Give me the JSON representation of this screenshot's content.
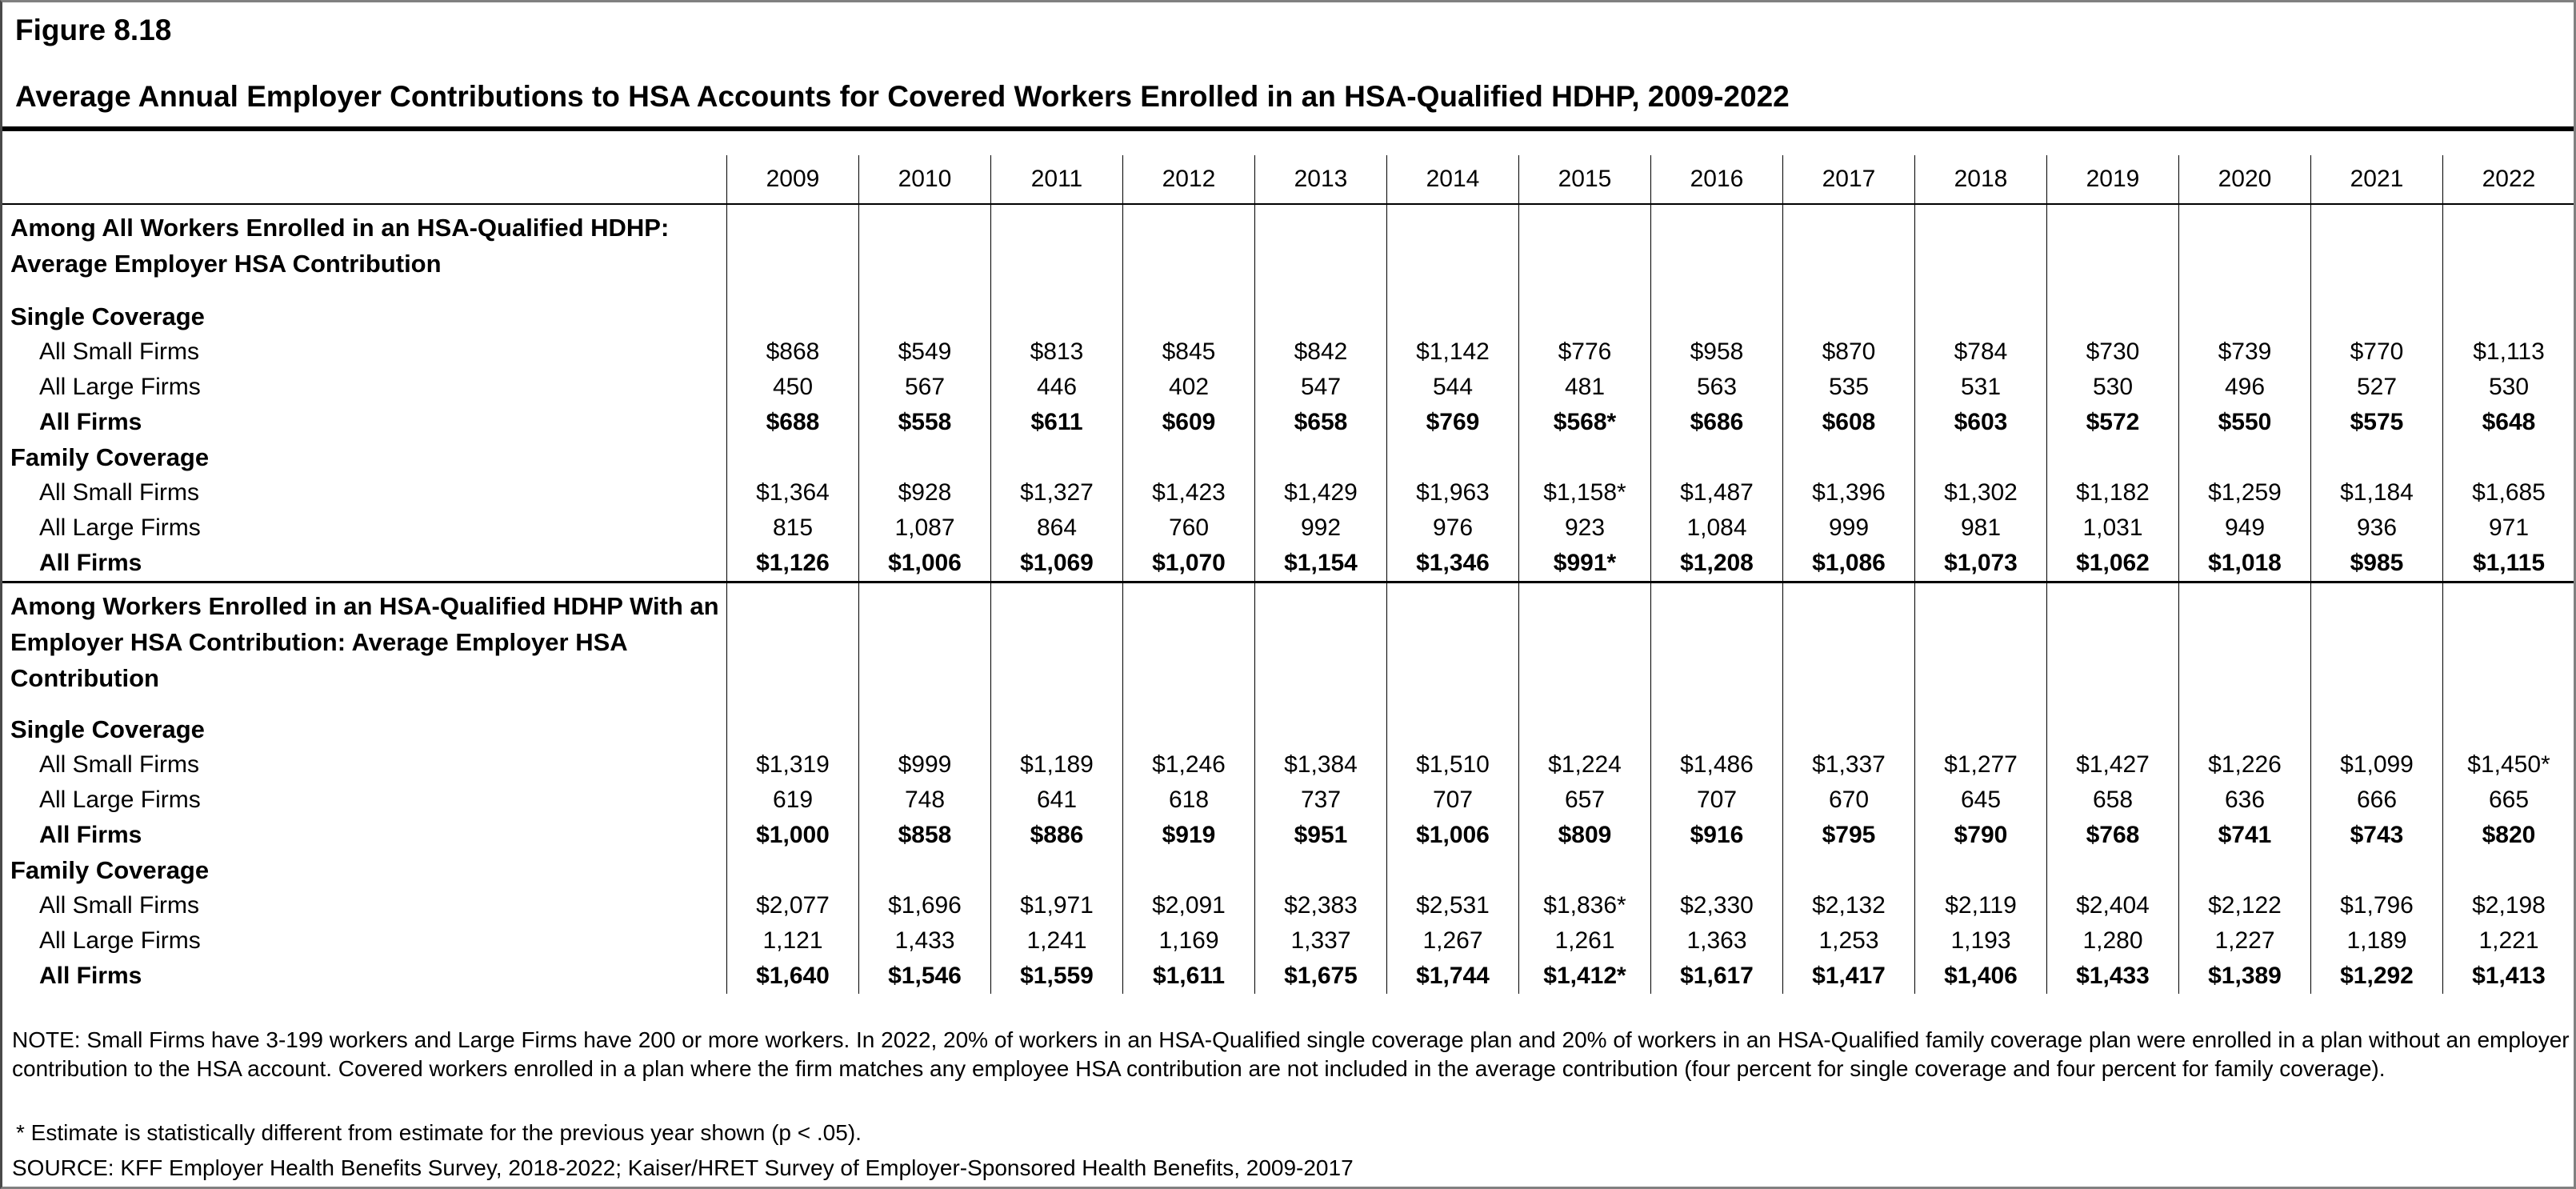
{
  "figure": {
    "number": "Figure 8.18",
    "title": "Average Annual Employer Contributions to HSA Accounts for Covered Workers Enrolled in an HSA-Qualified HDHP, 2009-2022"
  },
  "chart_data": {
    "type": "table",
    "title": "Average Annual Employer Contributions to HSA Accounts for Covered Workers Enrolled in an HSA-Qualified HDHP, 2009-2022",
    "columns": [
      "2009",
      "2010",
      "2011",
      "2012",
      "2013",
      "2014",
      "2015",
      "2016",
      "2017",
      "2018",
      "2019",
      "2020",
      "2021",
      "2022"
    ],
    "sections": [
      {
        "header_lines": [
          "Among All Workers Enrolled in an HSA-Qualified HDHP:",
          "Average Employer HSA Contribution"
        ],
        "groups": [
          {
            "label": "Single Coverage",
            "rows": [
              {
                "label": "All Small Firms",
                "bold": false,
                "values": [
                  "$868",
                  "$549",
                  "$813",
                  "$845",
                  "$842",
                  "$1,142",
                  "$776",
                  "$958",
                  "$870",
                  "$784",
                  "$730",
                  "$739",
                  "$770",
                  "$1,113"
                ]
              },
              {
                "label": "All Large Firms",
                "bold": false,
                "values": [
                  "450",
                  "567",
                  "446",
                  "402",
                  "547",
                  "544",
                  "481",
                  "563",
                  "535",
                  "531",
                  "530",
                  "496",
                  "527",
                  "530"
                ]
              },
              {
                "label": "All Firms",
                "bold": true,
                "values": [
                  "$688",
                  "$558",
                  "$611",
                  "$609",
                  "$658",
                  "$769",
                  "$568*",
                  "$686",
                  "$608",
                  "$603",
                  "$572",
                  "$550",
                  "$575",
                  "$648"
                ]
              }
            ]
          },
          {
            "label": "Family Coverage",
            "rows": [
              {
                "label": "All Small Firms",
                "bold": false,
                "values": [
                  "$1,364",
                  "$928",
                  "$1,327",
                  "$1,423",
                  "$1,429",
                  "$1,963",
                  "$1,158*",
                  "$1,487",
                  "$1,396",
                  "$1,302",
                  "$1,182",
                  "$1,259",
                  "$1,184",
                  "$1,685"
                ]
              },
              {
                "label": "All Large Firms",
                "bold": false,
                "values": [
                  "815",
                  "1,087",
                  "864",
                  "760",
                  "992",
                  "976",
                  "923",
                  "1,084",
                  "999",
                  "981",
                  "1,031",
                  "949",
                  "936",
                  "971"
                ]
              },
              {
                "label": "All Firms",
                "bold": true,
                "values": [
                  "$1,126",
                  "$1,006",
                  "$1,069",
                  "$1,070",
                  "$1,154",
                  "$1,346",
                  "$991*",
                  "$1,208",
                  "$1,086",
                  "$1,073",
                  "$1,062",
                  "$1,018",
                  "$985",
                  "$1,115"
                ]
              }
            ]
          }
        ]
      },
      {
        "header_lines": [
          "Among Workers Enrolled in an HSA-Qualified HDHP With an",
          "Employer HSA Contribution: Average Employer HSA",
          "Contribution"
        ],
        "groups": [
          {
            "label": "Single Coverage",
            "rows": [
              {
                "label": "All Small Firms",
                "bold": false,
                "values": [
                  "$1,319",
                  "$999",
                  "$1,189",
                  "$1,246",
                  "$1,384",
                  "$1,510",
                  "$1,224",
                  "$1,486",
                  "$1,337",
                  "$1,277",
                  "$1,427",
                  "$1,226",
                  "$1,099",
                  "$1,450*"
                ]
              },
              {
                "label": "All Large Firms",
                "bold": false,
                "values": [
                  "619",
                  "748",
                  "641",
                  "618",
                  "737",
                  "707",
                  "657",
                  "707",
                  "670",
                  "645",
                  "658",
                  "636",
                  "666",
                  "665"
                ]
              },
              {
                "label": "All Firms",
                "bold": true,
                "values": [
                  "$1,000",
                  "$858",
                  "$886",
                  "$919",
                  "$951",
                  "$1,006",
                  "$809",
                  "$916",
                  "$795",
                  "$790",
                  "$768",
                  "$741",
                  "$743",
                  "$820"
                ]
              }
            ]
          },
          {
            "label": "Family Coverage",
            "rows": [
              {
                "label": "All Small Firms",
                "bold": false,
                "values": [
                  "$2,077",
                  "$1,696",
                  "$1,971",
                  "$2,091",
                  "$2,383",
                  "$2,531",
                  "$1,836*",
                  "$2,330",
                  "$2,132",
                  "$2,119",
                  "$2,404",
                  "$2,122",
                  "$1,796",
                  "$2,198"
                ]
              },
              {
                "label": "All Large Firms",
                "bold": false,
                "values": [
                  "1,121",
                  "1,433",
                  "1,241",
                  "1,169",
                  "1,337",
                  "1,267",
                  "1,261",
                  "1,363",
                  "1,253",
                  "1,193",
                  "1,280",
                  "1,227",
                  "1,189",
                  "1,221"
                ]
              },
              {
                "label": "All Firms",
                "bold": true,
                "values": [
                  "$1,640",
                  "$1,546",
                  "$1,559",
                  "$1,611",
                  "$1,675",
                  "$1,744",
                  "$1,412*",
                  "$1,617",
                  "$1,417",
                  "$1,406",
                  "$1,433",
                  "$1,389",
                  "$1,292",
                  "$1,413"
                ]
              }
            ]
          }
        ]
      }
    ]
  },
  "notes": {
    "note_lines": [
      "NOTE: Small Firms have 3-199 workers and Large Firms have 200 or more workers. In 2022, 20% of workers in an HSA-Qualified single coverage plan and 20% of workers in an HSA-Qualified family coverage plan were enrolled in a plan without an employer",
      "contribution to the HSA account. Covered workers enrolled in a plan where the firm matches any employee HSA contribution are not included in the average contribution (four percent for single coverage and four percent for family coverage)."
    ],
    "footnote": "* Estimate is statistically different from estimate for the previous year shown (p < .05).",
    "source": "SOURCE: KFF Employer Health Benefits Survey, 2018-2022; Kaiser/HRET Survey of Employer-Sponsored Health Benefits, 2009-2017"
  }
}
